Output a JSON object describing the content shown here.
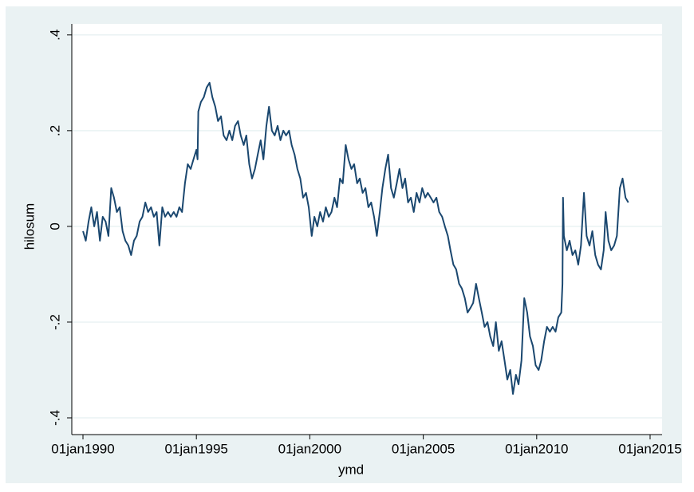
{
  "chart_data": {
    "type": "line",
    "x_label": "ymd",
    "y_label": "hilosum",
    "color": "#1a476f",
    "grid": true,
    "xlim": [
      "1989-07-05",
      "2015-07-13"
    ],
    "xticks": [
      {
        "value": "1990-01-01",
        "label": "01jan1990"
      },
      {
        "value": "1995-01-01",
        "label": "01jan1995"
      },
      {
        "value": "2000-01-01",
        "label": "01jan2000"
      },
      {
        "value": "2005-01-01",
        "label": "01jan2005"
      },
      {
        "value": "2010-01-01",
        "label": "01jan2010"
      },
      {
        "value": "2015-01-01",
        "label": "01jan2015"
      }
    ],
    "ylim": [
      -0.435,
      0.423
    ],
    "yticks": [
      {
        "value": -0.4,
        "label": "-.4"
      },
      {
        "value": -0.2,
        "label": "-.2"
      },
      0,
      {
        "value": 0.2,
        "label": ".2"
      },
      {
        "value": 0.4,
        "label": ".4"
      }
    ],
    "x": [
      "1990-01-02",
      "1990-02-15",
      "1990-04-01",
      "1990-05-15",
      "1990-07-01",
      "1990-08-15",
      "1990-10-01",
      "1990-11-15",
      "1991-01-01",
      "1991-02-15",
      "1991-04-01",
      "1991-05-15",
      "1991-07-01",
      "1991-08-15",
      "1991-10-01",
      "1991-11-15",
      "1992-01-01",
      "1992-02-15",
      "1992-04-01",
      "1992-05-15",
      "1992-07-01",
      "1992-08-15",
      "1992-10-01",
      "1992-11-15",
      "1993-01-01",
      "1993-02-15",
      "1993-04-01",
      "1993-05-15",
      "1993-07-01",
      "1993-08-15",
      "1993-10-01",
      "1993-11-15",
      "1994-01-01",
      "1994-02-15",
      "1994-04-01",
      "1994-05-15",
      "1994-07-01",
      "1994-08-15",
      "1994-10-01",
      "1994-11-15",
      "1995-01-01",
      "1995-01-20",
      "1995-02-01",
      "1995-03-15",
      "1995-05-01",
      "1995-06-15",
      "1995-08-01",
      "1995-09-15",
      "1995-11-01",
      "1995-12-15",
      "1996-02-01",
      "1996-03-15",
      "1996-05-01",
      "1996-06-15",
      "1996-08-01",
      "1996-09-15",
      "1996-11-01",
      "1996-12-15",
      "1997-02-01",
      "1997-03-15",
      "1997-05-01",
      "1997-06-15",
      "1997-08-01",
      "1997-09-15",
      "1997-11-01",
      "1997-12-15",
      "1998-02-01",
      "1998-03-15",
      "1998-05-01",
      "1998-06-15",
      "1998-08-01",
      "1998-09-15",
      "1998-11-01",
      "1998-12-15",
      "1999-02-01",
      "1999-03-15",
      "1999-05-01",
      "1999-06-15",
      "1999-08-01",
      "1999-09-15",
      "1999-11-01",
      "1999-12-15",
      "2000-02-01",
      "2000-03-15",
      "2000-05-01",
      "2000-06-15",
      "2000-08-01",
      "2000-09-15",
      "2000-11-01",
      "2000-12-15",
      "2001-02-01",
      "2001-03-15",
      "2001-05-01",
      "2001-06-15",
      "2001-08-01",
      "2001-09-15",
      "2001-11-01",
      "2001-12-15",
      "2002-02-01",
      "2002-03-15",
      "2002-05-01",
      "2002-06-15",
      "2002-08-01",
      "2002-09-15",
      "2002-11-01",
      "2002-12-15",
      "2003-02-01",
      "2003-03-15",
      "2003-05-01",
      "2003-06-15",
      "2003-08-01",
      "2003-09-15",
      "2003-11-01",
      "2003-12-15",
      "2004-02-01",
      "2004-03-15",
      "2004-05-01",
      "2004-06-15",
      "2004-08-01",
      "2004-09-15",
      "2004-11-01",
      "2004-12-15",
      "2005-02-01",
      "2005-03-15",
      "2005-05-01",
      "2005-06-15",
      "2005-08-01",
      "2005-09-15",
      "2005-11-01",
      "2005-12-15",
      "2006-02-01",
      "2006-03-15",
      "2006-05-01",
      "2006-06-15",
      "2006-08-01",
      "2006-09-15",
      "2006-11-01",
      "2006-12-15",
      "2007-02-01",
      "2007-03-15",
      "2007-05-01",
      "2007-06-15",
      "2007-08-01",
      "2007-09-15",
      "2007-11-01",
      "2007-12-15",
      "2008-02-01",
      "2008-03-15",
      "2008-05-01",
      "2008-06-15",
      "2008-08-01",
      "2008-09-15",
      "2008-11-01",
      "2008-12-15",
      "2009-02-01",
      "2009-03-15",
      "2009-05-01",
      "2009-06-15",
      "2009-08-01",
      "2009-09-15",
      "2009-11-01",
      "2009-12-15",
      "2010-02-01",
      "2010-03-15",
      "2010-05-01",
      "2010-06-15",
      "2010-08-01",
      "2010-09-15",
      "2010-11-01",
      "2010-12-15",
      "2011-02-01",
      "2011-02-20",
      "2011-03-01",
      "2011-03-15",
      "2011-05-01",
      "2011-06-15",
      "2011-08-01",
      "2011-09-15",
      "2011-11-01",
      "2011-12-15",
      "2012-02-01",
      "2012-03-15",
      "2012-05-01",
      "2012-06-15",
      "2012-08-01",
      "2012-09-15",
      "2012-11-01",
      "2012-12-15",
      "2013-01-15",
      "2013-03-01",
      "2013-04-15",
      "2013-06-01",
      "2013-07-15",
      "2013-09-01",
      "2013-10-15",
      "2013-12-01",
      "2014-01-15"
    ],
    "values": [
      -0.01,
      -0.03,
      0.01,
      0.04,
      0.0,
      0.03,
      -0.03,
      0.02,
      0.01,
      -0.02,
      0.08,
      0.06,
      0.03,
      0.04,
      -0.01,
      -0.03,
      -0.04,
      -0.06,
      -0.03,
      -0.02,
      0.01,
      0.02,
      0.05,
      0.03,
      0.04,
      0.02,
      0.03,
      -0.04,
      0.04,
      0.02,
      0.03,
      0.02,
      0.03,
      0.02,
      0.04,
      0.03,
      0.09,
      0.13,
      0.12,
      0.14,
      0.16,
      0.14,
      0.24,
      0.26,
      0.27,
      0.29,
      0.3,
      0.27,
      0.25,
      0.22,
      0.23,
      0.19,
      0.18,
      0.2,
      0.18,
      0.21,
      0.22,
      0.19,
      0.17,
      0.19,
      0.13,
      0.1,
      0.12,
      0.15,
      0.18,
      0.14,
      0.21,
      0.25,
      0.2,
      0.19,
      0.21,
      0.18,
      0.2,
      0.19,
      0.2,
      0.17,
      0.15,
      0.12,
      0.1,
      0.06,
      0.07,
      0.04,
      -0.02,
      0.02,
      0.0,
      0.03,
      0.01,
      0.04,
      0.02,
      0.03,
      0.06,
      0.04,
      0.1,
      0.09,
      0.17,
      0.14,
      0.12,
      0.13,
      0.09,
      0.1,
      0.07,
      0.08,
      0.04,
      0.05,
      0.02,
      -0.02,
      0.03,
      0.08,
      0.12,
      0.15,
      0.08,
      0.06,
      0.09,
      0.12,
      0.08,
      0.1,
      0.05,
      0.06,
      0.03,
      0.07,
      0.05,
      0.08,
      0.06,
      0.07,
      0.06,
      0.05,
      0.06,
      0.03,
      0.02,
      0.0,
      -0.02,
      -0.05,
      -0.08,
      -0.09,
      -0.12,
      -0.13,
      -0.15,
      -0.18,
      -0.17,
      -0.16,
      -0.12,
      -0.15,
      -0.18,
      -0.21,
      -0.2,
      -0.23,
      -0.25,
      -0.2,
      -0.26,
      -0.24,
      -0.28,
      -0.32,
      -0.3,
      -0.35,
      -0.31,
      -0.33,
      -0.28,
      -0.15,
      -0.18,
      -0.23,
      -0.25,
      -0.29,
      -0.3,
      -0.28,
      -0.24,
      -0.21,
      -0.22,
      -0.21,
      -0.22,
      -0.19,
      -0.18,
      -0.12,
      0.06,
      -0.02,
      -0.05,
      -0.03,
      -0.06,
      -0.05,
      -0.08,
      -0.04,
      0.07,
      -0.02,
      -0.04,
      -0.01,
      -0.06,
      -0.08,
      -0.09,
      -0.05,
      0.03,
      -0.03,
      -0.05,
      -0.04,
      -0.02,
      0.08,
      0.1,
      0.06,
      0.05
    ]
  }
}
